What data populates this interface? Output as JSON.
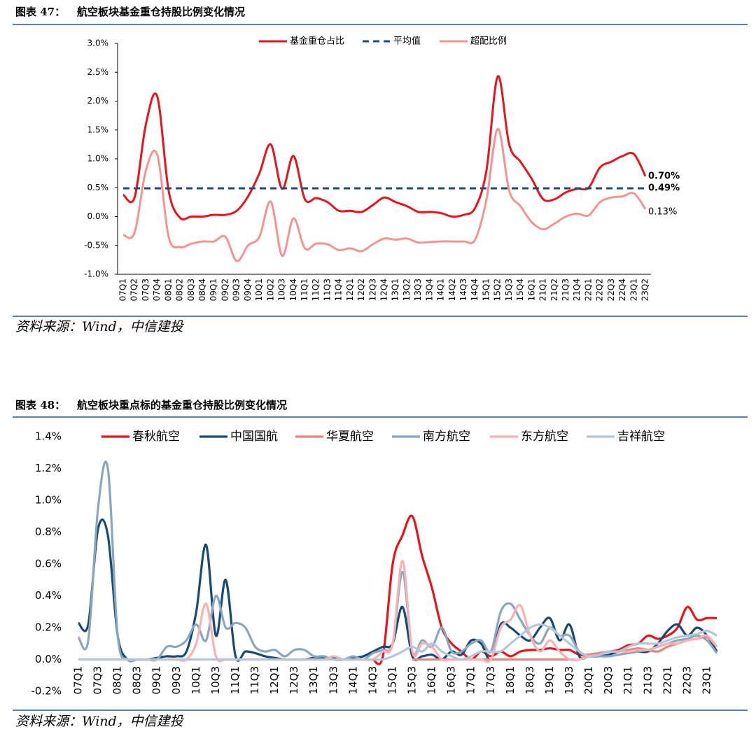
{
  "chart_data": [
    {
      "type": "line",
      "figure_label": "图表 47：",
      "title": "航空板块基金重仓持股比例变化情况",
      "source": "资料来源：Wind，中信建投",
      "categories": [
        "07Q1",
        "07Q2",
        "07Q3",
        "07Q4",
        "08Q1",
        "08Q2",
        "08Q3",
        "08Q4",
        "09Q1",
        "09Q2",
        "09Q3",
        "09Q4",
        "10Q1",
        "10Q2",
        "10Q3",
        "10Q4",
        "11Q1",
        "11Q2",
        "11Q3",
        "11Q4",
        "12Q1",
        "12Q2",
        "12Q3",
        "12Q4",
        "13Q1",
        "13Q2",
        "13Q3",
        "13Q4",
        "14Q1",
        "14Q2",
        "14Q3",
        "14Q4",
        "15Q1",
        "15Q2",
        "15Q3",
        "15Q4",
        "16Q1",
        "21Q1",
        "21Q2",
        "21Q3",
        "21Q4",
        "22Q1",
        "22Q2",
        "22Q3",
        "22Q4",
        "23Q1",
        "23Q2"
      ],
      "series": [
        {
          "name": "基金重仓占比",
          "color": "#e8141c",
          "style": "solid",
          "values": [
            0.38,
            0.33,
            1.6,
            2.08,
            0.45,
            -0.02,
            0.0,
            0.0,
            0.03,
            0.03,
            0.1,
            0.35,
            0.75,
            1.25,
            0.48,
            1.05,
            0.3,
            0.32,
            0.25,
            0.1,
            0.1,
            0.08,
            0.2,
            0.33,
            0.25,
            0.18,
            0.08,
            0.08,
            0.06,
            0.0,
            0.03,
            0.15,
            0.8,
            2.43,
            1.25,
            0.95,
            0.65,
            0.3,
            0.3,
            0.42,
            0.48,
            0.5,
            0.85,
            0.95,
            1.05,
            1.08,
            0.7
          ],
          "value_labels": [
            null,
            null,
            null,
            null,
            null,
            null,
            null,
            null,
            null,
            null,
            null,
            null,
            null,
            null,
            null,
            null,
            null,
            null,
            null,
            null,
            null,
            null,
            null,
            null,
            null,
            null,
            null,
            null,
            null,
            null,
            null,
            null,
            null,
            null,
            null,
            null,
            null,
            null,
            null,
            null,
            null,
            null,
            null,
            null,
            null,
            null,
            "0.70%"
          ]
        },
        {
          "name": "平均值",
          "color": "#1f4e79",
          "style": "dashed",
          "values": [
            0.49,
            0.49,
            0.49,
            0.49,
            0.49,
            0.49,
            0.49,
            0.49,
            0.49,
            0.49,
            0.49,
            0.49,
            0.49,
            0.49,
            0.49,
            0.49,
            0.49,
            0.49,
            0.49,
            0.49,
            0.49,
            0.49,
            0.49,
            0.49,
            0.49,
            0.49,
            0.49,
            0.49,
            0.49,
            0.49,
            0.49,
            0.49,
            0.49,
            0.49,
            0.49,
            0.49,
            0.49,
            0.49,
            0.49,
            0.49,
            0.49,
            0.49,
            0.49,
            0.49,
            0.49,
            0.49,
            0.49
          ],
          "value_labels": [
            null,
            null,
            null,
            null,
            null,
            null,
            null,
            null,
            null,
            null,
            null,
            null,
            null,
            null,
            null,
            null,
            null,
            null,
            null,
            null,
            null,
            null,
            null,
            null,
            null,
            null,
            null,
            null,
            null,
            null,
            null,
            null,
            null,
            null,
            null,
            null,
            null,
            null,
            null,
            null,
            null,
            null,
            null,
            null,
            null,
            null,
            "0.49%"
          ]
        },
        {
          "name": "超配比例",
          "color": "#f59393",
          "style": "solid",
          "values": [
            -0.32,
            -0.28,
            0.8,
            1.07,
            -0.35,
            -0.53,
            -0.47,
            -0.43,
            -0.43,
            -0.35,
            -0.77,
            -0.5,
            -0.35,
            0.26,
            -0.68,
            -0.03,
            -0.55,
            -0.47,
            -0.48,
            -0.58,
            -0.55,
            -0.6,
            -0.48,
            -0.38,
            -0.4,
            -0.38,
            -0.45,
            -0.44,
            -0.43,
            -0.43,
            -0.43,
            -0.4,
            0.3,
            1.52,
            0.45,
            0.18,
            -0.1,
            -0.22,
            -0.12,
            0.0,
            0.05,
            0.02,
            0.25,
            0.33,
            0.35,
            0.4,
            0.13
          ],
          "value_labels": [
            null,
            null,
            null,
            null,
            null,
            null,
            null,
            null,
            null,
            null,
            null,
            null,
            null,
            null,
            null,
            null,
            null,
            null,
            null,
            null,
            null,
            null,
            null,
            null,
            null,
            null,
            null,
            null,
            null,
            null,
            null,
            null,
            null,
            null,
            null,
            null,
            null,
            null,
            null,
            null,
            null,
            null,
            null,
            null,
            null,
            null,
            "0.13%"
          ]
        }
      ],
      "ylim": [
        -1.0,
        3.0
      ],
      "yticks": [
        {
          "value": -1.0,
          "label": "-1.0%"
        },
        {
          "value": -0.5,
          "label": "-0.5%"
        },
        {
          "value": 0.0,
          "label": "0.0%"
        },
        {
          "value": 0.5,
          "label": "0.5%"
        },
        {
          "value": 1.0,
          "label": "1.0%"
        },
        {
          "value": 1.5,
          "label": "1.5%"
        },
        {
          "value": 2.0,
          "label": "2.0%"
        },
        {
          "value": 2.5,
          "label": "2.5%"
        },
        {
          "value": 3.0,
          "label": "3.0%"
        }
      ],
      "grid": false,
      "legend": "top"
    },
    {
      "type": "line",
      "figure_label": "图表 48：",
      "title": "航空板块重点标的基金重仓持股比例变化情况",
      "source": "资料来源：Wind，中信建投",
      "categories": [
        "07Q1",
        null,
        "07Q3",
        null,
        "08Q1",
        null,
        "08Q3",
        null,
        "09Q1",
        null,
        "09Q3",
        null,
        "10Q1",
        null,
        "10Q3",
        null,
        "11Q1",
        null,
        "11Q3",
        null,
        "12Q1",
        null,
        "12Q3",
        null,
        "13Q1",
        null,
        "13Q3",
        null,
        "14Q1",
        null,
        "14Q3",
        null,
        "15Q1",
        null,
        "15Q3",
        null,
        "16Q1",
        null,
        "16Q3",
        null,
        "17Q1",
        null,
        "17Q3",
        null,
        "18Q1",
        null,
        "18Q3",
        null,
        "19Q1",
        null,
        "19Q3",
        null,
        "20Q1",
        null,
        "20Q3",
        null,
        "21Q1",
        null,
        "21Q3",
        null,
        "22Q1",
        null,
        "22Q3",
        null,
        "23Q1",
        null
      ],
      "series": [
        {
          "name": "春秋航空",
          "color": "#e8141c",
          "values": [
            null,
            null,
            null,
            null,
            null,
            null,
            null,
            null,
            null,
            null,
            null,
            null,
            null,
            null,
            null,
            null,
            null,
            null,
            null,
            null,
            null,
            null,
            null,
            null,
            null,
            null,
            null,
            null,
            null,
            null,
            0,
            0.02,
            0.6,
            0.78,
            0.9,
            0.65,
            0.45,
            0.2,
            0.1,
            0.05,
            0,
            0.05,
            0.02,
            0.05,
            0.02,
            0.05,
            0.06,
            0.06,
            0.07,
            0.06,
            0.06,
            0.03,
            0.03,
            0.04,
            0.05,
            0.06,
            0.09,
            0.1,
            0.15,
            0.13,
            0.15,
            0.2,
            0.33,
            0.25,
            0.26,
            0.26
          ]
        },
        {
          "name": "中国国航",
          "color": "#174a75",
          "values": [
            0.23,
            0.22,
            0.82,
            0.78,
            0.15,
            0,
            0,
            0,
            0.01,
            0.02,
            0.02,
            0.05,
            0.3,
            0.72,
            0.15,
            0.5,
            0.02,
            0.05,
            0.04,
            0.02,
            0.01,
            0,
            0,
            0,
            0.01,
            0.01,
            0.01,
            0,
            0.01,
            0.02,
            0.05,
            0.08,
            0.1,
            0.33,
            0.02,
            0.02,
            0.03,
            0,
            0.05,
            0.03,
            0.12,
            0.1,
            0,
            0.22,
            0.2,
            0.15,
            0.12,
            0.2,
            0.26,
            0.12,
            0.22,
            0.02,
            0.02,
            0.02,
            0.03,
            0.05,
            0.05,
            0.05,
            0.05,
            0.1,
            0.18,
            0.22,
            0.15,
            0.2,
            0.15,
            0.05
          ]
        },
        {
          "name": "华夏航空",
          "color": "#f08080",
          "values": [
            null,
            null,
            null,
            null,
            null,
            null,
            null,
            null,
            null,
            null,
            null,
            null,
            null,
            null,
            null,
            null,
            null,
            null,
            null,
            null,
            null,
            null,
            null,
            null,
            null,
            null,
            null,
            null,
            null,
            null,
            null,
            null,
            null,
            null,
            0,
            0,
            0,
            0,
            0,
            0,
            0,
            0,
            0,
            0,
            0,
            0,
            0,
            0,
            0,
            0,
            0,
            0,
            0.03,
            0.04,
            0.05,
            0.05,
            0.06,
            0.07,
            0.06,
            0.05,
            0.08,
            0.1,
            0.12,
            0.13,
            0.14,
            0.08
          ]
        },
        {
          "name": "南方航空",
          "color": "#8ba7c0",
          "values": [
            0.14,
            0.12,
            0.95,
            1.2,
            0.15,
            0,
            0,
            0,
            0,
            0.08,
            0.08,
            0.12,
            0.22,
            0.12,
            0.4,
            0.2,
            0.23,
            0.2,
            0.08,
            0.05,
            0.06,
            0.02,
            0.06,
            0.06,
            0.02,
            0.02,
            0,
            0,
            0.02,
            0,
            0.04,
            0.06,
            0.1,
            0.55,
            0.05,
            0.12,
            0.08,
            0.2,
            0.05,
            0.05,
            0.1,
            0.12,
            0.05,
            0.3,
            0.35,
            0.25,
            0.15,
            0.1,
            0.2,
            0.15,
            0.15,
            0.05,
            0.02,
            0.02,
            0.02,
            0.03,
            0.04,
            0.05,
            0.06,
            0.08,
            0.1,
            0.12,
            0.13,
            0.15,
            0.12,
            0.04
          ]
        },
        {
          "name": "东方航空",
          "color": "#f6b2b5",
          "values": [
            0,
            0,
            0,
            0,
            0,
            0,
            0,
            0,
            0,
            0,
            0,
            0,
            0.1,
            0.35,
            0.02,
            0,
            0,
            0,
            0,
            0,
            0,
            0,
            0,
            0,
            0,
            0,
            0.02,
            0,
            0,
            0,
            0,
            0.05,
            0.1,
            0.62,
            0.05,
            0.1,
            0.08,
            0,
            0,
            0,
            0,
            0,
            0,
            0.2,
            0.25,
            0.34,
            0.15,
            0.05,
            0.12,
            0.05,
            0,
            0,
            0.02,
            0.03,
            0.05,
            0.05,
            0.05,
            0.06,
            0.06,
            0.08,
            0.1,
            0.1,
            0.12,
            0.13,
            0.15,
            0.08
          ]
        },
        {
          "name": "吉祥航空",
          "color": "#b4c6d9",
          "values": [
            0,
            0,
            0,
            0,
            0,
            0,
            0,
            0,
            0,
            0,
            0,
            0,
            0,
            0,
            0,
            0,
            0,
            0,
            0,
            0,
            0,
            0,
            0,
            0,
            0,
            0,
            0,
            0,
            0,
            0,
            0,
            0,
            0.02,
            0.05,
            0.08,
            0.05,
            0.1,
            0.05,
            0.02,
            0,
            0.02,
            0.05,
            0.05,
            0.05,
            0.1,
            0.15,
            0.2,
            0.22,
            0.2,
            0.15,
            0.1,
            0.05,
            0.02,
            0.03,
            0.05,
            0.05,
            0.08,
            0.1,
            0.1,
            0.1,
            0.12,
            0.14,
            0.15,
            0.16,
            0.18,
            0.15
          ]
        }
      ],
      "ylim": [
        -0.2,
        1.4
      ],
      "yticks": [
        {
          "value": -0.2,
          "label": "-0.2%"
        },
        {
          "value": 0.0,
          "label": "0.0%"
        },
        {
          "value": 0.2,
          "label": "0.2%"
        },
        {
          "value": 0.4,
          "label": "0.4%"
        },
        {
          "value": 0.6,
          "label": "0.6%"
        },
        {
          "value": 0.8,
          "label": "0.8%"
        },
        {
          "value": 1.0,
          "label": "1.0%"
        },
        {
          "value": 1.2,
          "label": "1.2%"
        },
        {
          "value": 1.4,
          "label": "1.4%"
        }
      ],
      "grid": false,
      "legend": "top"
    }
  ]
}
